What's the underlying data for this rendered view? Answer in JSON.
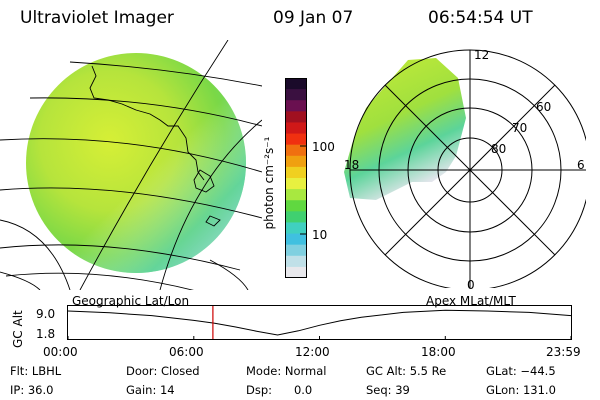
{
  "header": {
    "title": "Ultraviolet Imager",
    "date": "09 Jan 07",
    "time": "06:54:54 UT"
  },
  "colorbar": {
    "unit_label": "photon cm⁻²s⁻¹",
    "ticks": [
      {
        "label": "100",
        "value": 100
      },
      {
        "label": "10",
        "value": 10
      }
    ],
    "colors": [
      "#1a0a2a",
      "#3a1040",
      "#6a1050",
      "#a01020",
      "#d01818",
      "#f03010",
      "#f07010",
      "#f0a010",
      "#f0d020",
      "#e8f040",
      "#a8e840",
      "#60d840",
      "#40d070",
      "#40d0c0",
      "#40c0e0",
      "#80d0e0",
      "#c0e0e8",
      "#e8e8ec"
    ]
  },
  "map_panel": {
    "label": "Geographic Lat/Lon"
  },
  "polar_panel": {
    "label": "Apex MLat/MLT",
    "lat_labels": [
      "60",
      "70",
      "80"
    ],
    "mlt_labels": {
      "top": "12",
      "right": "6",
      "left": "18",
      "bottom": "0"
    }
  },
  "chart_data": {
    "type": "line",
    "title": "GC Alt",
    "ylabel": "GC Alt",
    "yticks": [
      "9.0",
      "1.8"
    ],
    "ylim": [
      1.8,
      9.0
    ],
    "xticks": [
      "00:00",
      "06:00",
      "12:00",
      "18:00",
      "23:59"
    ],
    "xlim_hours": [
      0,
      24
    ],
    "current_time_hours": 6.915,
    "series": [
      {
        "name": "GC Alt",
        "x": [
          0,
          2,
          4,
          6,
          7,
          8,
          9,
          10,
          11,
          12,
          13,
          14,
          16,
          18,
          20,
          22,
          24
        ],
        "y": [
          8.7,
          8.2,
          7.4,
          6.0,
          5.2,
          4.1,
          2.9,
          1.8,
          3.0,
          4.6,
          5.9,
          6.9,
          8.3,
          8.9,
          8.7,
          8.3,
          7.4
        ]
      }
    ]
  },
  "info": {
    "flt": "Flt: LBHL",
    "ip": "IP: 36.0",
    "door": "Door: Closed",
    "gain": "Gain: 14",
    "mode": "Mode: Normal",
    "dsp": "Dsp:      0.0",
    "gcalt": "GC Alt: 5.5 Re",
    "seq": "Seq: 39",
    "glat": "GLat: −44.5",
    "glon": "GLon: 131.0"
  }
}
